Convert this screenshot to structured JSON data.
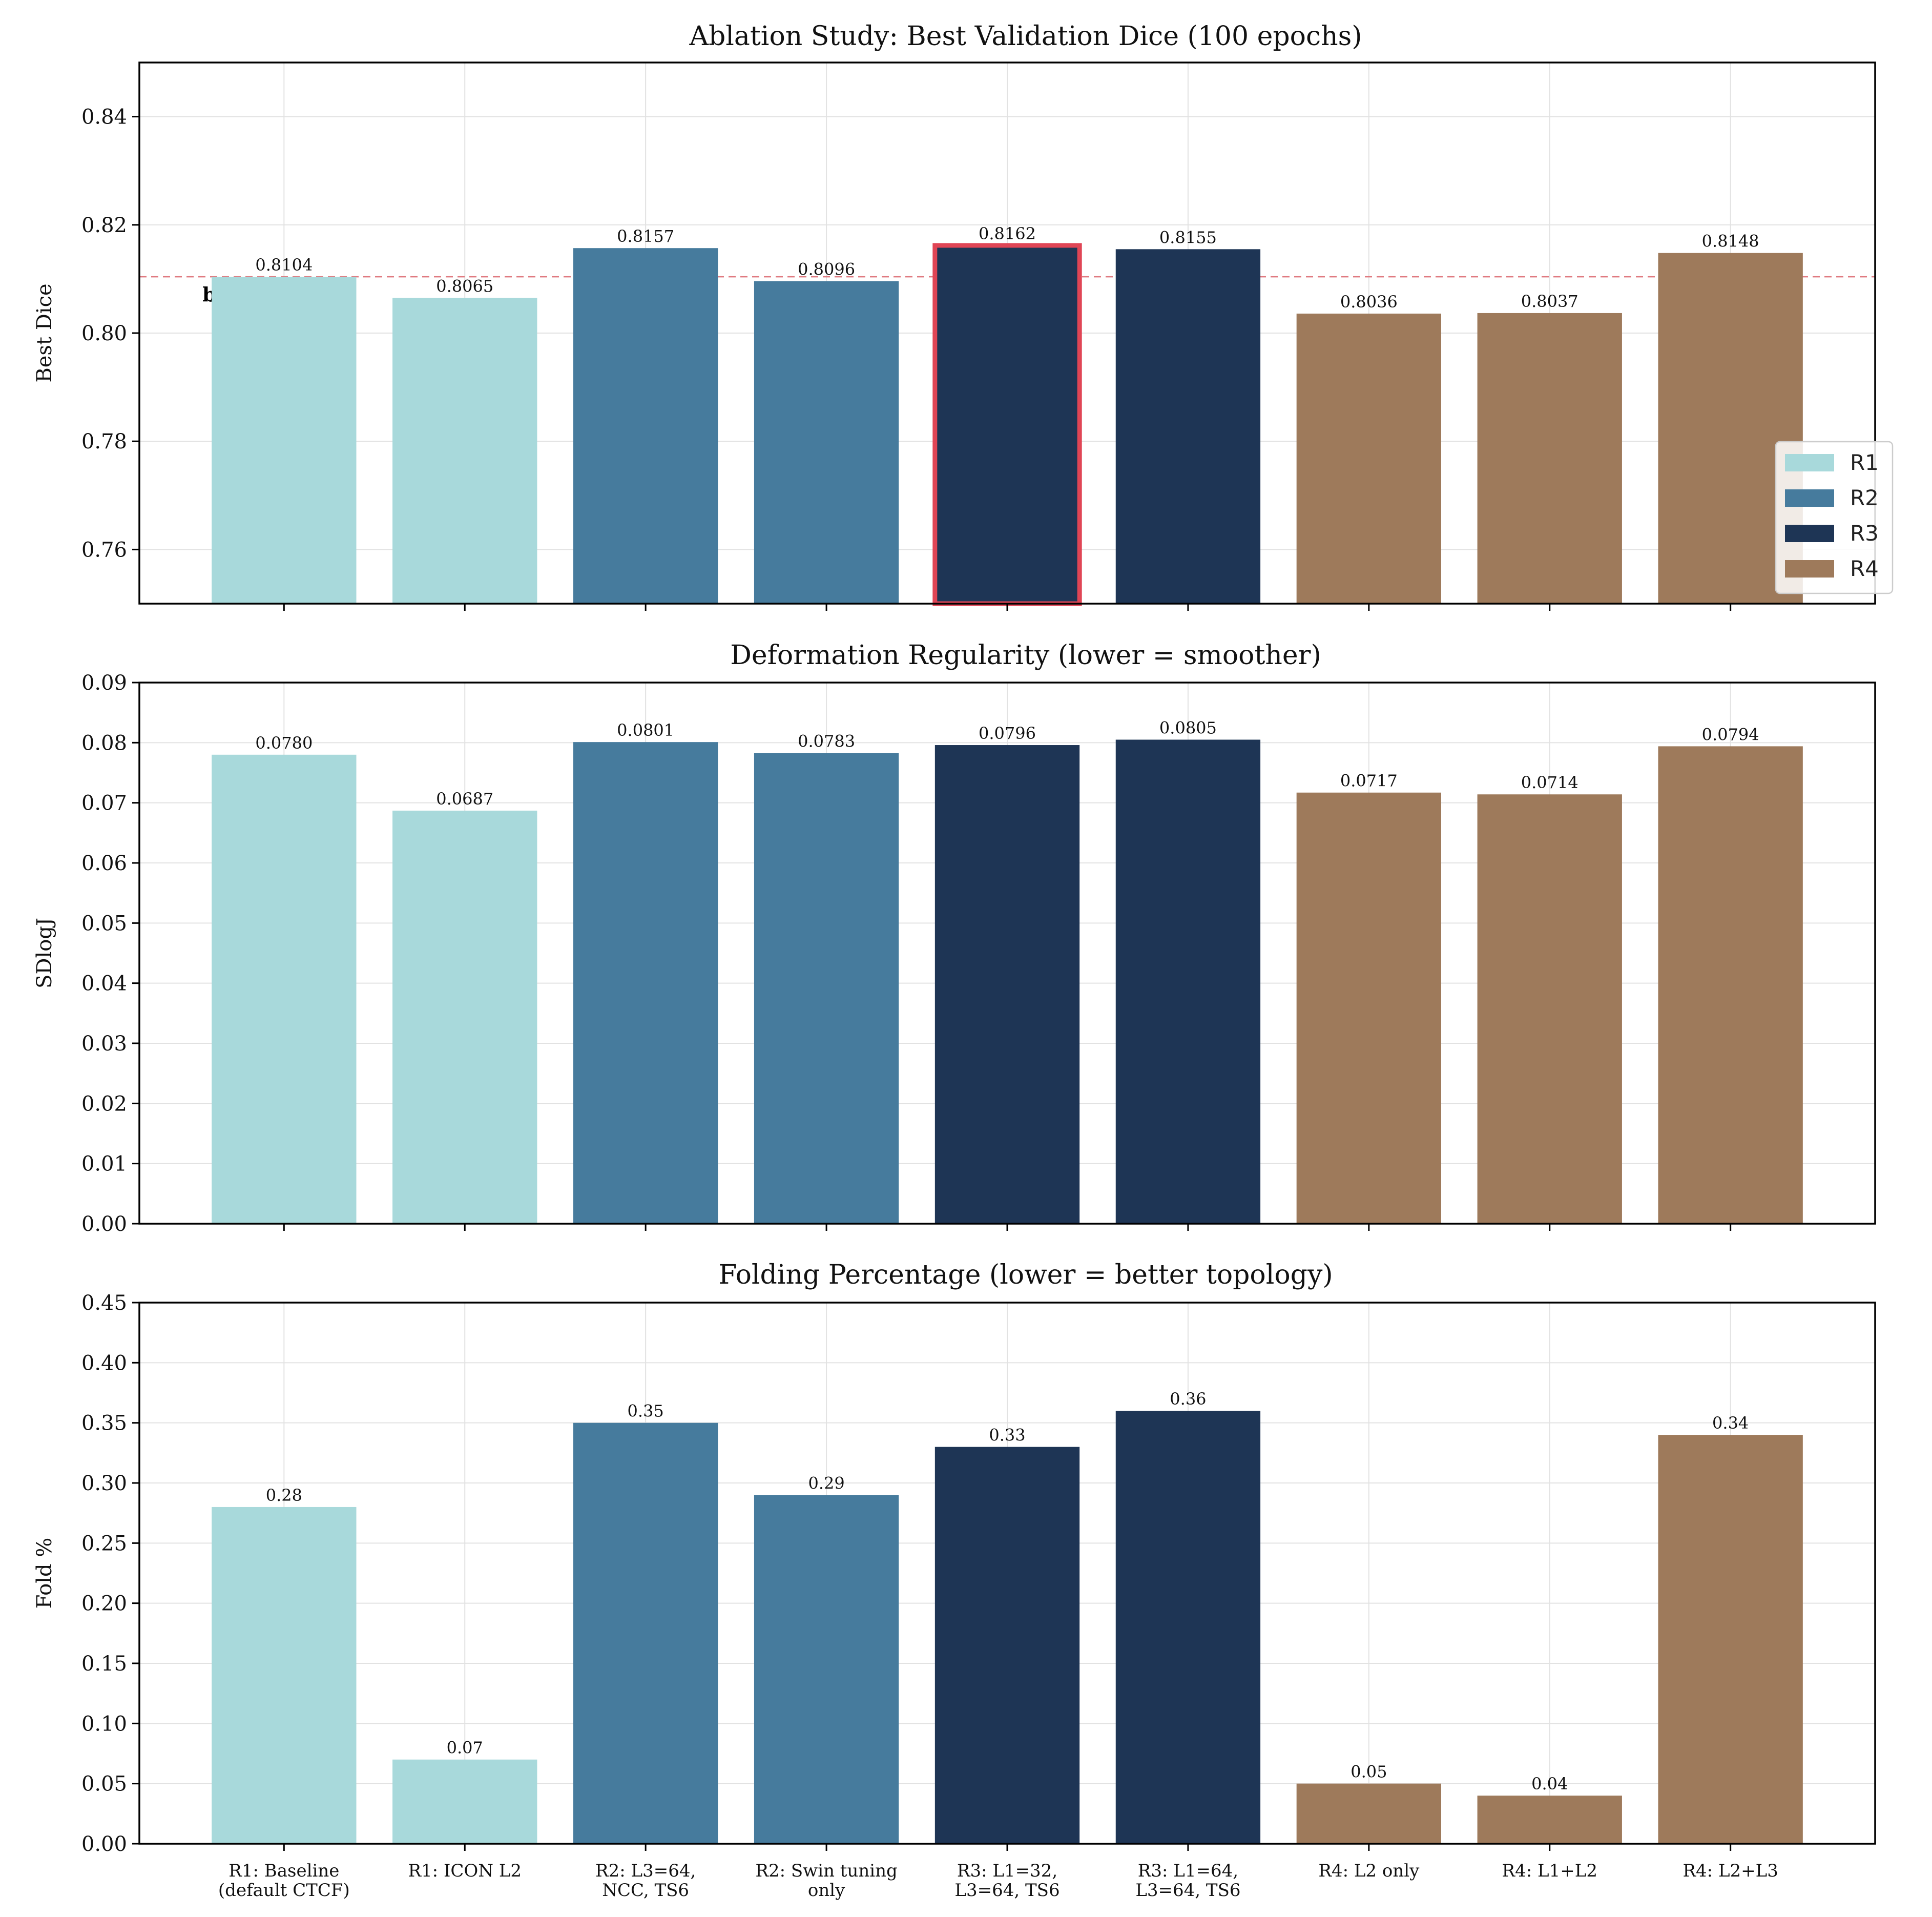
{
  "colors": {
    "R1": "#a8d9db",
    "R2": "#467b9d",
    "R3": "#1e3555",
    "R4": "#9e7a5b",
    "highlight": "#e04555",
    "baseline_line": "#e07a80"
  },
  "categories": [
    "R1: Baseline\n(default CTCF)",
    "R1: ICON L2",
    "R2: L3=64,\nNCC, TS6",
    "R2: Swin tuning\nonly",
    "R3: L1=32,\nL3=64, TS6",
    "R3: L1=64,\nL3=64, TS6",
    "R4: L2 only",
    "R4: L1+L2",
    "R4: L2+L3"
  ],
  "groups": [
    "R1",
    "R1",
    "R2",
    "R2",
    "R3",
    "R3",
    "R4",
    "R4",
    "R4"
  ],
  "legend": {
    "entries": [
      "R1",
      "R2",
      "R3",
      "R4"
    ],
    "placement": "lower-right of top panel"
  },
  "chart_data": [
    {
      "type": "bar",
      "title": "Ablation Study: Best Validation Dice (100 epochs)",
      "xlabel": "",
      "ylabel": "Best Dice",
      "ylim": [
        0.75,
        0.85
      ],
      "yticks": [
        "0.76",
        "0.78",
        "0.80",
        "0.82",
        "0.84"
      ],
      "values": [
        0.8104,
        0.8065,
        0.8157,
        0.8096,
        0.8162,
        0.8155,
        0.8036,
        0.8037,
        0.8148
      ],
      "value_labels": [
        "0.8104",
        "0.8065",
        "0.8157",
        "0.8096",
        "0.8162",
        "0.8155",
        "0.8036",
        "0.8037",
        "0.8148"
      ],
      "highlight_index": 4,
      "baseline": {
        "value": 0.8104,
        "label": "baseline"
      },
      "grid": true
    },
    {
      "type": "bar",
      "title": "Deformation Regularity (lower = smoother)",
      "xlabel": "",
      "ylabel": "SDlogJ",
      "ylim": [
        0.0,
        0.09
      ],
      "yticks": [
        "0.00",
        "0.01",
        "0.02",
        "0.03",
        "0.04",
        "0.05",
        "0.06",
        "0.07",
        "0.08",
        "0.09"
      ],
      "values": [
        0.078,
        0.0687,
        0.0801,
        0.0783,
        0.0796,
        0.0805,
        0.0717,
        0.0714,
        0.0794
      ],
      "value_labels": [
        "0.0780",
        "0.0687",
        "0.0801",
        "0.0783",
        "0.0796",
        "0.0805",
        "0.0717",
        "0.0714",
        "0.0794"
      ],
      "grid": true
    },
    {
      "type": "bar",
      "title": "Folding Percentage (lower = better topology)",
      "xlabel": "",
      "ylabel": "Fold %",
      "ylim": [
        0.0,
        0.45
      ],
      "yticks": [
        "0.00",
        "0.05",
        "0.10",
        "0.15",
        "0.20",
        "0.25",
        "0.30",
        "0.35",
        "0.40",
        "0.45"
      ],
      "values": [
        0.28,
        0.07,
        0.35,
        0.29,
        0.33,
        0.36,
        0.05,
        0.04,
        0.34
      ],
      "value_labels": [
        "0.28",
        "0.07",
        "0.35",
        "0.29",
        "0.33",
        "0.36",
        "0.05",
        "0.04",
        "0.34"
      ],
      "grid": true
    }
  ]
}
